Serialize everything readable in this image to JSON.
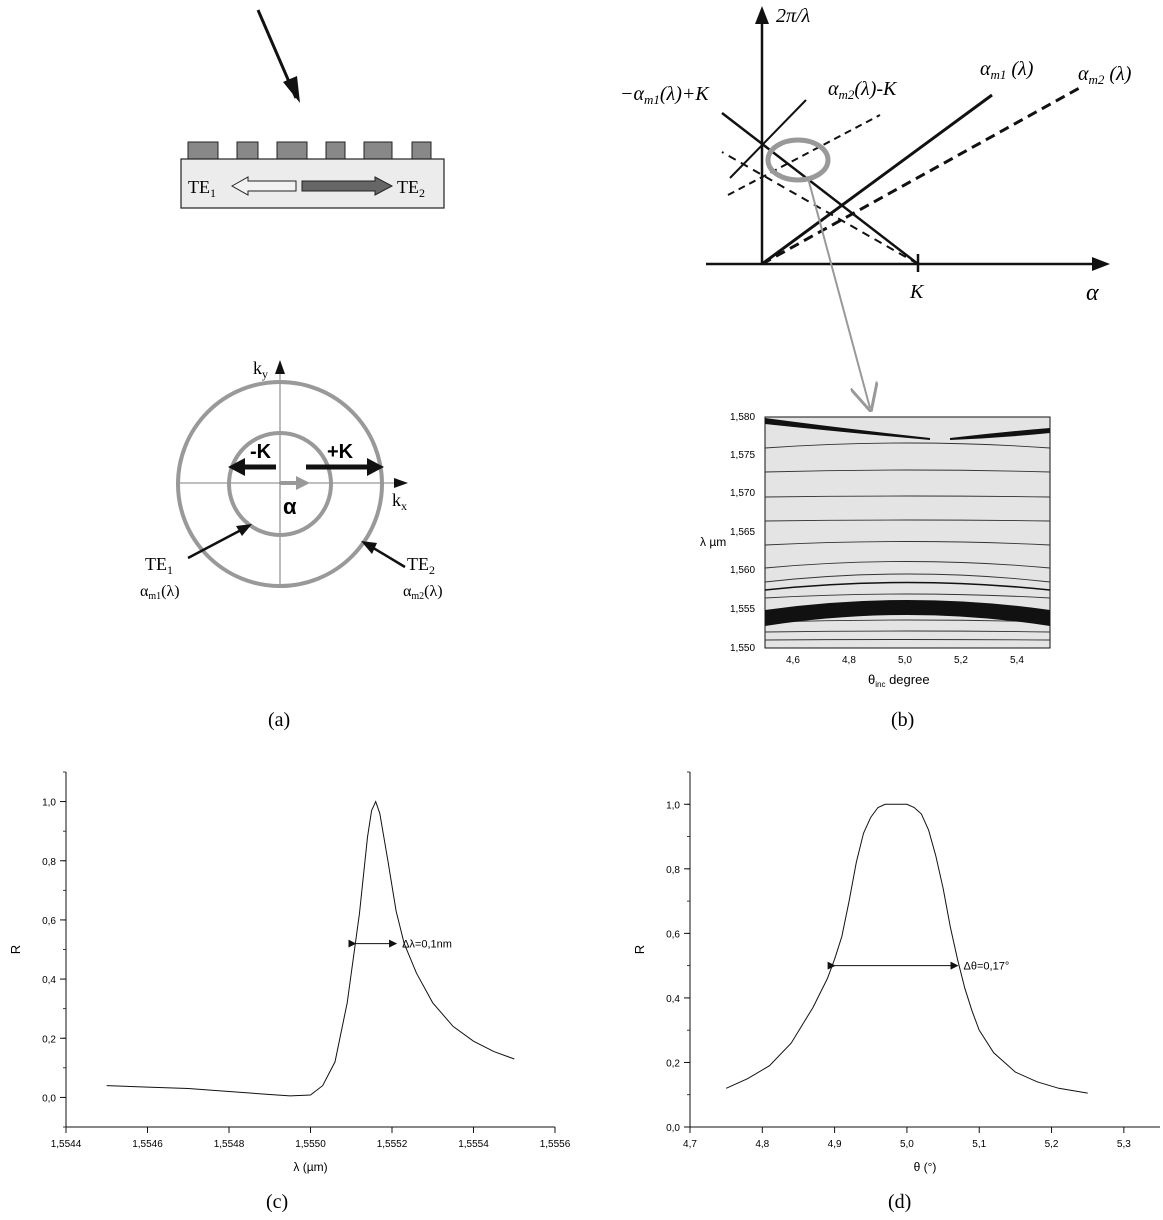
{
  "panels": {
    "a": {
      "caption": "(a)",
      "grating_labels": {
        "te1": "TE",
        "te1_sub": "1",
        "te2": "TE",
        "te2_sub": "2"
      },
      "kspace": {
        "ky": "k",
        "ky_sub": "y",
        "kx": "k",
        "kx_sub": "x",
        "minus_k": "-K",
        "plus_k": "+K",
        "alpha": "α",
        "te1_label": "TE",
        "te1_sub": "1",
        "te1_alpha": "α",
        "te1_alpha_sub": "m1",
        "te1_alpha_arg": "(λ)",
        "te2_label": "TE",
        "te2_sub": "2",
        "te2_alpha": "α",
        "te2_alpha_sub": "m2",
        "te2_alpha_arg": "(λ)"
      }
    },
    "b": {
      "caption": "(b)",
      "dispersion": {
        "y_axis": "2π/λ",
        "x_axis": "α",
        "k_tick": "K",
        "label_am1": "α",
        "label_am1_sub": "m1",
        "label_am1_arg": " (λ)",
        "label_am2": "α",
        "label_am2_sub": "m2",
        "label_am2_arg": " (λ)",
        "label_minus": "−α",
        "label_minus_sub": "m1",
        "label_minus_arg": "(λ)+K",
        "label_am2k": "α",
        "label_am2k_sub": "m2",
        "label_am2k_arg": "(λ)-K"
      },
      "contour": {
        "ylabel": "λ µm",
        "xlabel": "θ",
        "xlabel_sub": "inc",
        "xlabel_rest": " degree",
        "y_ticks": [
          "1,550",
          "1,555",
          "1,560",
          "1,565",
          "1,570",
          "1,575",
          "1,580"
        ],
        "x_ticks": [
          "4,6",
          "4,8",
          "5,0",
          "5,2",
          "5,4"
        ]
      }
    },
    "c": {
      "caption": "(c)"
    },
    "d": {
      "caption": "(d)"
    }
  },
  "chart_data": [
    {
      "type": "line",
      "panel": "c",
      "xlabel": "λ (µm)",
      "ylabel": "R",
      "xlim": [
        1.5544,
        1.5556
      ],
      "ylim": [
        -0.1,
        1.1
      ],
      "x_ticks": [
        "1,5544",
        "1,5546",
        "1,5548",
        "1,5550",
        "1,5552",
        "1,5554",
        "1,5556"
      ],
      "y_ticks": [
        "0,0",
        "0,2",
        "0,4",
        "0,6",
        "0,8",
        "1,0"
      ],
      "annotation": "Δλ=0,1nm",
      "annotation_span": [
        1.55511,
        1.55521,
        0.52
      ],
      "x": [
        1.5545,
        1.5546,
        1.5547,
        1.5548,
        1.5549,
        1.55495,
        1.555,
        1.55503,
        1.55506,
        1.55509,
        1.55512,
        1.55514,
        1.55515,
        1.55516,
        1.55517,
        1.55519,
        1.55521,
        1.55523,
        1.55526,
        1.5553,
        1.55535,
        1.5554,
        1.55545,
        1.5555
      ],
      "y": [
        0.04,
        0.035,
        0.03,
        0.02,
        0.01,
        0.005,
        0.008,
        0.04,
        0.12,
        0.32,
        0.62,
        0.88,
        0.97,
        1.0,
        0.96,
        0.8,
        0.63,
        0.52,
        0.42,
        0.32,
        0.24,
        0.19,
        0.155,
        0.13
      ]
    },
    {
      "type": "line",
      "panel": "d",
      "xlabel": "θ (°)",
      "ylabel": "R",
      "xlim": [
        4.7,
        5.35
      ],
      "ylim": [
        0.0,
        1.1
      ],
      "x_ticks": [
        "4,7",
        "4,8",
        "4,9",
        "5,0",
        "5,1",
        "5,2",
        "5,3"
      ],
      "y_ticks": [
        "0,0",
        "0,2",
        "0,4",
        "0,6",
        "0,8",
        "1,0"
      ],
      "annotation": "Δθ=0,17°",
      "annotation_span": [
        4.9,
        5.07,
        0.5
      ],
      "x": [
        4.75,
        4.78,
        4.81,
        4.84,
        4.87,
        4.89,
        4.9,
        4.91,
        4.92,
        4.93,
        4.94,
        4.95,
        4.96,
        4.97,
        4.98,
        4.99,
        5.0,
        5.01,
        5.02,
        5.03,
        5.04,
        5.05,
        5.06,
        5.07,
        5.08,
        5.09,
        5.1,
        5.12,
        5.15,
        5.18,
        5.21,
        5.25
      ],
      "y": [
        0.12,
        0.15,
        0.19,
        0.26,
        0.37,
        0.46,
        0.52,
        0.59,
        0.7,
        0.82,
        0.91,
        0.96,
        0.99,
        1.0,
        1.0,
        1.0,
        1.0,
        0.99,
        0.97,
        0.92,
        0.84,
        0.74,
        0.62,
        0.52,
        0.43,
        0.36,
        0.3,
        0.23,
        0.17,
        0.14,
        0.12,
        0.105
      ]
    }
  ]
}
